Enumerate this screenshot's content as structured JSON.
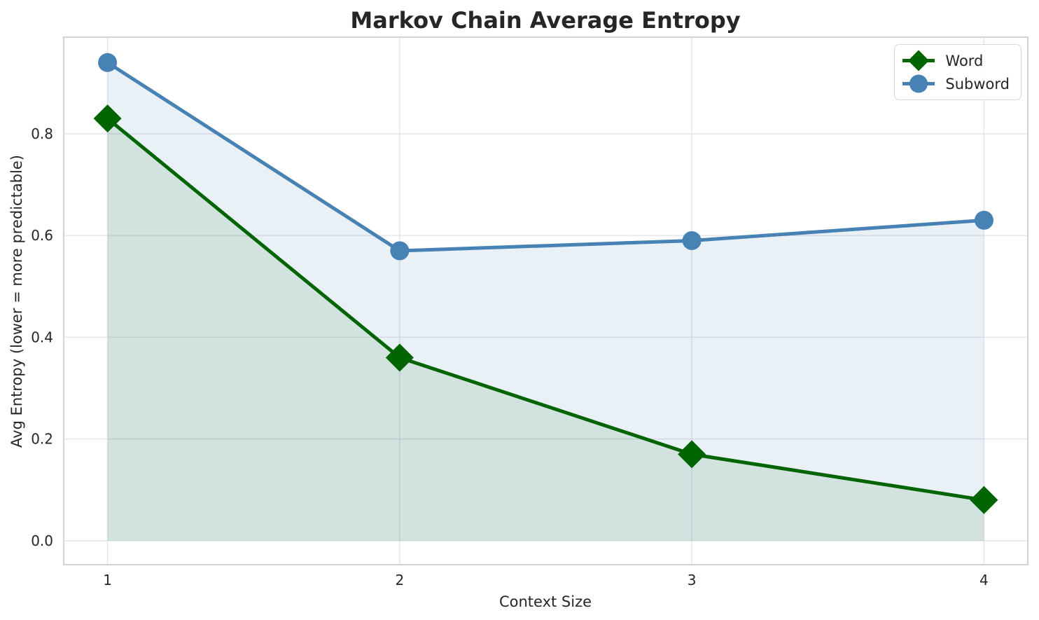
{
  "chart_data": {
    "type": "line",
    "title": "Markov Chain Average Entropy",
    "xlabel": "Context Size",
    "ylabel": "Avg Entropy (lower = more predictable)",
    "x": [
      1,
      2,
      3,
      4
    ],
    "series": [
      {
        "name": "Word",
        "values": [
          0.83,
          0.36,
          0.17,
          0.08
        ],
        "color": "#006400",
        "marker": "diamond",
        "fill": "rgba(0,100,0,0.10)"
      },
      {
        "name": "Subword",
        "values": [
          0.94,
          0.57,
          0.59,
          0.63
        ],
        "color": "#4682b4",
        "marker": "circle",
        "fill": "rgba(70,130,180,0.12)"
      }
    ],
    "xticks": {
      "values": [
        1,
        2,
        3,
        4
      ],
      "labels": [
        "1",
        "2",
        "3",
        "4"
      ]
    },
    "yticks": {
      "values": [
        0.0,
        0.2,
        0.4,
        0.6,
        0.8
      ],
      "labels": [
        "0.0",
        "0.2",
        "0.4",
        "0.6",
        "0.8"
      ]
    },
    "xlim": [
      0.85,
      4.15
    ],
    "ylim": [
      -0.047,
      0.99
    ],
    "grid": true,
    "legend_position": "upper right",
    "style": {
      "text_color": "#262626",
      "grid_color": "#e6e6ea",
      "spine_color": "#d3d3d3",
      "background": "#ffffff",
      "line_width": 5,
      "marker_half_diamond": 20,
      "marker_radius_circle": 13.5,
      "tick_font_size": 20
    }
  }
}
